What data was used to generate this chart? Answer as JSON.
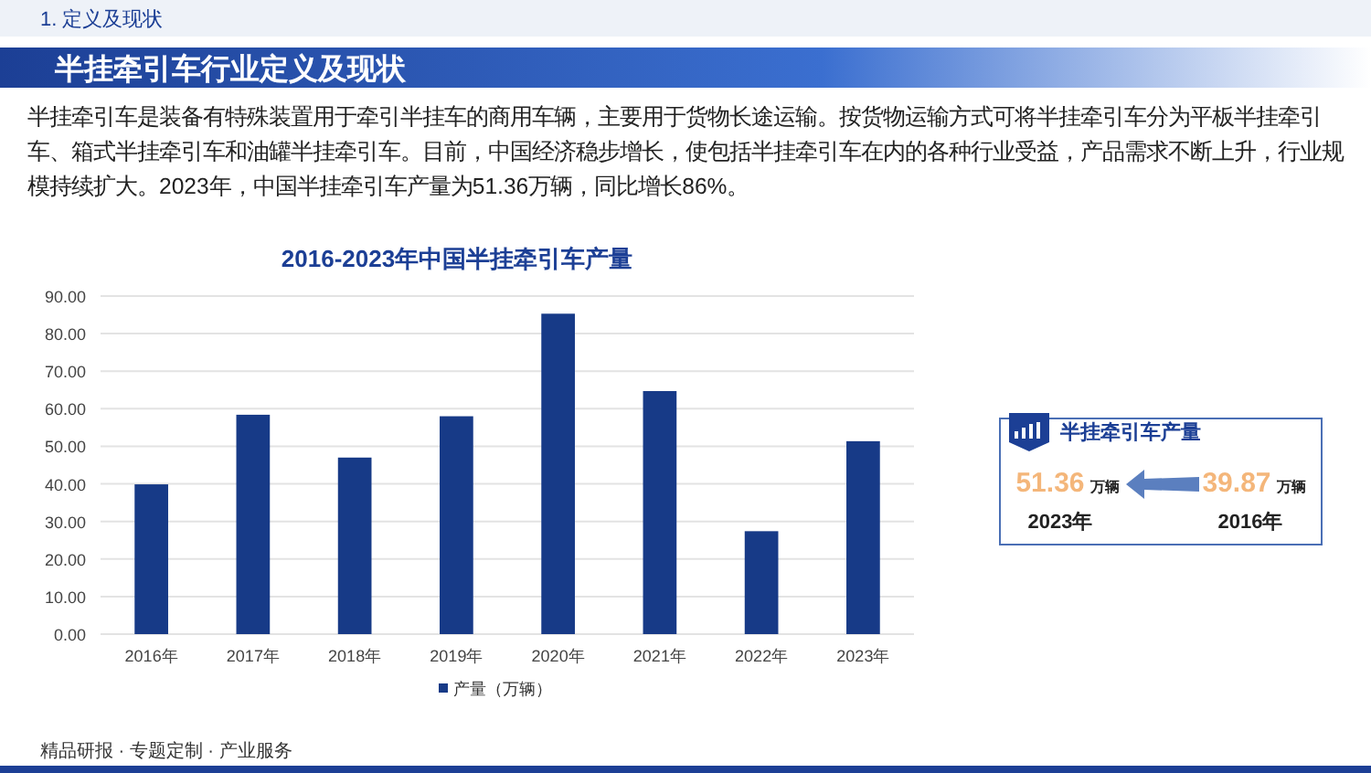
{
  "chart_data": {
    "type": "bar",
    "title": "2016-2023年中国半挂牵引车产量",
    "categories": [
      "2016年",
      "2017年",
      "2018年",
      "2019年",
      "2020年",
      "2021年",
      "2022年",
      "2023年"
    ],
    "series": [
      {
        "name": "产量（万辆）",
        "color": "#173a87",
        "values": [
          39.87,
          58.4,
          47.0,
          58.0,
          85.3,
          64.7,
          27.4,
          51.36
        ]
      }
    ],
    "ylim": [
      0,
      90
    ],
    "yticks": [
      {
        "value": 0,
        "label": "0.00"
      },
      {
        "value": 10,
        "label": "10.00"
      },
      {
        "value": 20,
        "label": "20.00"
      },
      {
        "value": 30,
        "label": "30.00"
      },
      {
        "value": 40,
        "label": "40.00"
      },
      {
        "value": 50,
        "label": "50.00"
      },
      {
        "value": 60,
        "label": "60.00"
      },
      {
        "value": 70,
        "label": "70.00"
      },
      {
        "value": 80,
        "label": "80.00"
      },
      {
        "value": 90,
        "label": "90.00"
      }
    ],
    "grid": "y",
    "legend": "bottom",
    "annotations": [
      "1. 定义及现状",
      "半挂牵引车行业定义及现状",
      "半挂牵引车是装备有特殊装置用于牵引半挂车的商用车辆，主要用于货物长途运输。按货物运输方式可将半挂牵引车分为平板半挂牵引车、箱式半挂牵引车和油罐半挂牵引车。目前，中国经济稳步增长，使包括半挂牵引车在内的各种行业受益，产品需求不断上升，行业规模持续扩大。2023年，中国半挂牵引车产量为51.36万辆，同比增长86%。",
      "半挂牵引车产量",
      "51.36 万辆",
      "2023年",
      "39.87 万辆",
      "2016年",
      "精品研报 · 专题定制 · 产业服务"
    ]
  }
}
